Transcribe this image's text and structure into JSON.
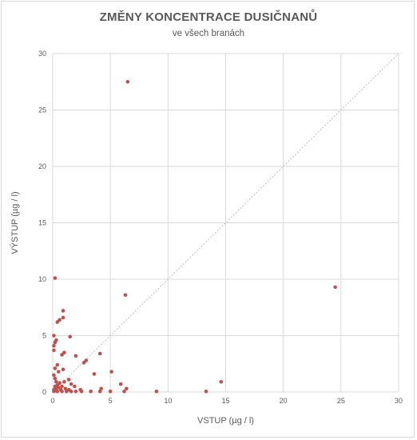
{
  "chart_data": {
    "type": "scatter",
    "title": "ZMĚNY KONCENTRACE DUSIČNANŮ",
    "subtitle": "ve všech branách",
    "xlabel": "VSTUP (µg / l)",
    "ylabel": "VÝSTUP (µg / l)",
    "xlim": [
      0,
      30
    ],
    "ylim": [
      0,
      30
    ],
    "xticks": [
      "0",
      "5",
      "10",
      "15",
      "20",
      "25",
      "30"
    ],
    "yticks": [
      "0",
      "5",
      "10",
      "15",
      "20",
      "25",
      "30"
    ],
    "grid": true,
    "reference_line": "y = x (dotted diagonal)",
    "colors": {
      "points": "#c0504d",
      "grid": "#d9d9d9",
      "diagonal": "#bfbfbf",
      "text": "#595959"
    },
    "points": [
      [
        6.5,
        27.5
      ],
      [
        24.5,
        9.3
      ],
      [
        0.2,
        10.1
      ],
      [
        6.3,
        8.6
      ],
      [
        0.9,
        7.2
      ],
      [
        0.9,
        6.6
      ],
      [
        0.6,
        6.4
      ],
      [
        0.4,
        6.2
      ],
      [
        0.1,
        5.0
      ],
      [
        1.5,
        4.9
      ],
      [
        0.3,
        4.6
      ],
      [
        0.2,
        4.4
      ],
      [
        0.1,
        4.1
      ],
      [
        0.1,
        3.7
      ],
      [
        1.0,
        3.5
      ],
      [
        4.1,
        3.4
      ],
      [
        0.8,
        3.3
      ],
      [
        2.0,
        3.2
      ],
      [
        2.9,
        2.8
      ],
      [
        2.7,
        2.6
      ],
      [
        0.4,
        2.4
      ],
      [
        0.2,
        2.1
      ],
      [
        0.9,
        2.0
      ],
      [
        0.5,
        1.8
      ],
      [
        5.1,
        1.8
      ],
      [
        3.6,
        1.6
      ],
      [
        0.1,
        1.5
      ],
      [
        0.2,
        1.2
      ],
      [
        1.4,
        1.1
      ],
      [
        0.3,
        0.9
      ],
      [
        1.0,
        0.9
      ],
      [
        14.6,
        0.9
      ],
      [
        0.6,
        0.8
      ],
      [
        1.6,
        0.7
      ],
      [
        5.9,
        0.7
      ],
      [
        0.4,
        0.6
      ],
      [
        0.2,
        0.5
      ],
      [
        0.8,
        0.5
      ],
      [
        1.9,
        0.5
      ],
      [
        0.5,
        0.4
      ],
      [
        0.3,
        0.3
      ],
      [
        1.1,
        0.3
      ],
      [
        4.2,
        0.3
      ],
      [
        6.4,
        0.3
      ],
      [
        0.1,
        0.2
      ],
      [
        0.7,
        0.2
      ],
      [
        1.4,
        0.2
      ],
      [
        2.4,
        0.2
      ],
      [
        0.1,
        0.05
      ],
      [
        0.4,
        0.05
      ],
      [
        0.8,
        0.05
      ],
      [
        1.2,
        0.05
      ],
      [
        1.6,
        0.05
      ],
      [
        2.0,
        0.05
      ],
      [
        2.5,
        0.05
      ],
      [
        3.3,
        0.05
      ],
      [
        4.1,
        0.05
      ],
      [
        5.0,
        0.05
      ],
      [
        6.2,
        0.05
      ],
      [
        9.0,
        0.05
      ],
      [
        13.3,
        0.05
      ]
    ]
  }
}
